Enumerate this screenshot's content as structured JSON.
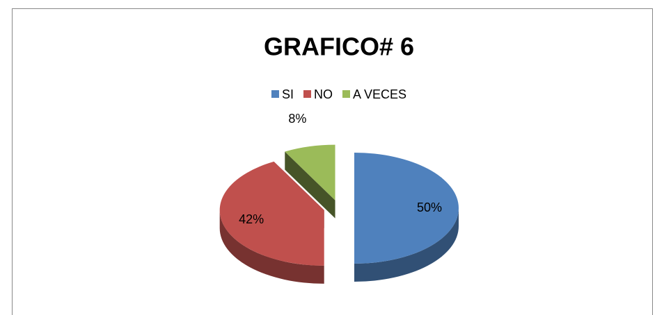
{
  "chart_data": {
    "type": "pie",
    "title": "GRAFICO# 6",
    "categories": [
      "SI",
      "NO",
      "A VECES"
    ],
    "values": [
      50,
      42,
      8
    ],
    "value_labels": [
      "50%",
      "42%",
      "8%"
    ],
    "colors": [
      "#4f81bd",
      "#c0504d",
      "#9bbb59"
    ],
    "legend": "top"
  }
}
